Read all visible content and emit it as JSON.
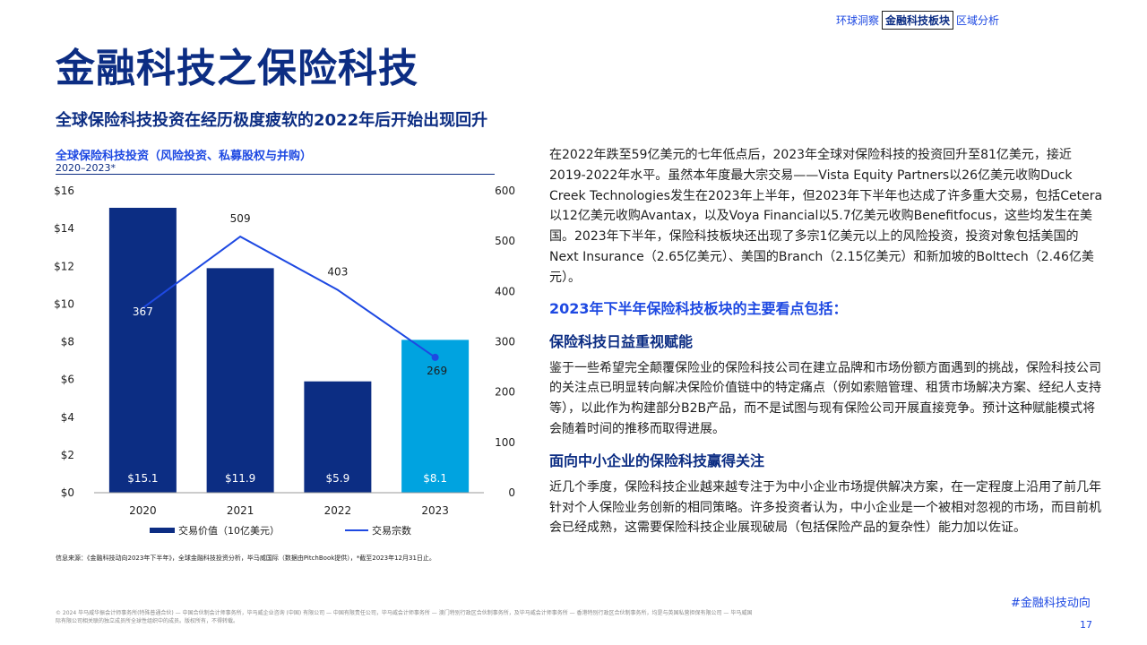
{
  "nav": [
    {
      "label": "环球洞察",
      "active": false
    },
    {
      "label": "金融科技板块",
      "active": true
    },
    {
      "label": "区域分析",
      "active": false
    }
  ],
  "title": "金融科技之保险科技",
  "subtitle": "全球保险科技投资在经历极度疲软的2022年后开始出现回升",
  "chart_title": "全球保险科技投资（风险投资、私募股权与并购）",
  "chart_subtitle": "2020–2023*",
  "chart_data": {
    "type": "bar",
    "categories": [
      "2020",
      "2021",
      "2022",
      "2023"
    ],
    "series": [
      {
        "name": "交易价值（10亿美元）",
        "type": "bar",
        "axis": "left",
        "values": [
          15.1,
          11.9,
          5.9,
          8.1
        ],
        "labels": [
          "$15.1",
          "$11.9",
          "$5.9",
          "$8.1"
        ],
        "colors": [
          "#0c2d83",
          "#0c2d83",
          "#0c2d83",
          "#00a3e0"
        ]
      },
      {
        "name": "交易宗数",
        "type": "line",
        "axis": "right",
        "values": [
          367,
          509,
          403,
          269
        ],
        "color": "#1e49e2"
      }
    ],
    "y_left": {
      "min": 0,
      "max": 16,
      "ticks": [
        "$0",
        "$2",
        "$4",
        "$6",
        "$8",
        "$10",
        "$12",
        "$14",
        "$16"
      ]
    },
    "y_right": {
      "min": 0,
      "max": 600,
      "ticks": [
        "0",
        "100",
        "200",
        "300",
        "400",
        "500",
        "600"
      ]
    },
    "legend_position": "bottom",
    "grid": false
  },
  "source": "信息来源：《金融科技动向2023年下半年》，全球金融科技投资分析，毕马威国际（数据由PitchBook提供），*截至2023年12月31日止。",
  "body": {
    "intro": "在2022年跌至59亿美元的七年低点后，2023年全球对保险科技的投资回升至81亿美元，接近2019-2022年水平。虽然本年度最大宗交易——Vista Equity Partners以26亿美元收购Duck Creek Technologies发生在2023年上半年，但2023年下半年也达成了许多重大交易，包括Cetera以12亿美元收购Avantax，以及Voya Financial以5.7亿美元收购Benefitfocus，这些均发生在美国。2023年下半年，保险科技板块还出现了多宗1亿美元以上的风险投资，投资对象包括美国的Next Insurance（2.65亿美元）、美国的Branch（2.15亿美元）和新加坡的Bolttech（2.46亿美元）。",
    "highlights_heading": "2023年下半年保险科技板块的主要看点包括：",
    "h1": "保险科技日益重视赋能",
    "p1": "鉴于一些希望完全颠覆保险业的保险科技公司在建立品牌和市场份额方面遇到的挑战，保险科技公司的关注点已明显转向解决保险价值链中的特定痛点（例如索赔管理、租赁市场解决方案、经纪人支持等），以此作为构建部分B2B产品，而不是试图与现有保险公司开展直接竞争。预计这种赋能模式将会随着时间的推移而取得进展。",
    "h2": "面向中小企业的保险科技赢得关注",
    "p2": "近几个季度，保险科技企业越来越专注于为中小企业市场提供解决方案，在一定程度上沿用了前几年针对个人保险业务创新的相同策略。许多投资者认为，中小企业是一个被相对忽视的市场，而目前机会已经成熟，这需要保险科技企业展现破局（包括保险产品的复杂性）能力加以佐证。"
  },
  "footer": {
    "disclaimer": "© 2024 毕马威华振会计师事务所(特殊普通合伙) — 中国合伙制会计师事务所，毕马威企业咨询 (中国) 有限公司 — 中国有限责任公司，毕马威会计师事务所 — 澳门特别行政区合伙制事务所，及毕马威会计师事务所 — 香港特别行政区合伙制事务所，均是与英国私营担保有限公司 — 毕马威国际有限公司相关联的独立成员所全球性组织中的成员。版权所有，不得转载。",
    "hashtag": "#金融科技动向",
    "page_number": "17"
  }
}
